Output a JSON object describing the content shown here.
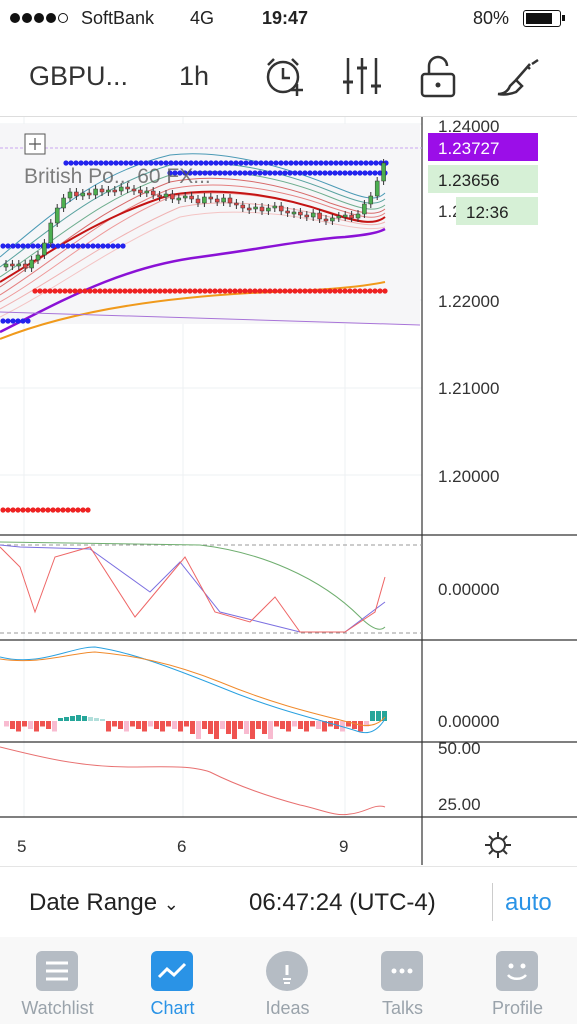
{
  "status": {
    "carrier": "SoftBank",
    "network": "4G",
    "time": "19:47",
    "battery": "80%"
  },
  "toolbar": {
    "symbol": "GBPU...",
    "interval": "1h"
  },
  "chart": {
    "legend": "British Po...  60   FX...",
    "price_labels": [
      "1.24000",
      "1.22000",
      "1.21000",
      "1.20000"
    ],
    "last_price": "1.23727",
    "bid_price": "1.23656",
    "countdown": "12:36",
    "osc1_label": "0.00000",
    "osc2_label": "0.00000",
    "osc3_labels": [
      "50.00",
      "25.00"
    ],
    "x_labels": [
      "5",
      "6",
      "9"
    ],
    "colors": {
      "last_price_bg": "#9b0ee8",
      "bid_bg": "#d6f0d6"
    }
  },
  "bottom": {
    "date_range": "Date Range",
    "clock": "06:47:24 (UTC-4)",
    "auto": "auto"
  },
  "tabs": [
    {
      "label": "Watchlist",
      "icon": "list-icon"
    },
    {
      "label": "Chart",
      "icon": "chart-icon"
    },
    {
      "label": "Ideas",
      "icon": "lightbulb-icon"
    },
    {
      "label": "Talks",
      "icon": "chat-icon"
    },
    {
      "label": "Profile",
      "icon": "smiley-icon"
    }
  ]
}
